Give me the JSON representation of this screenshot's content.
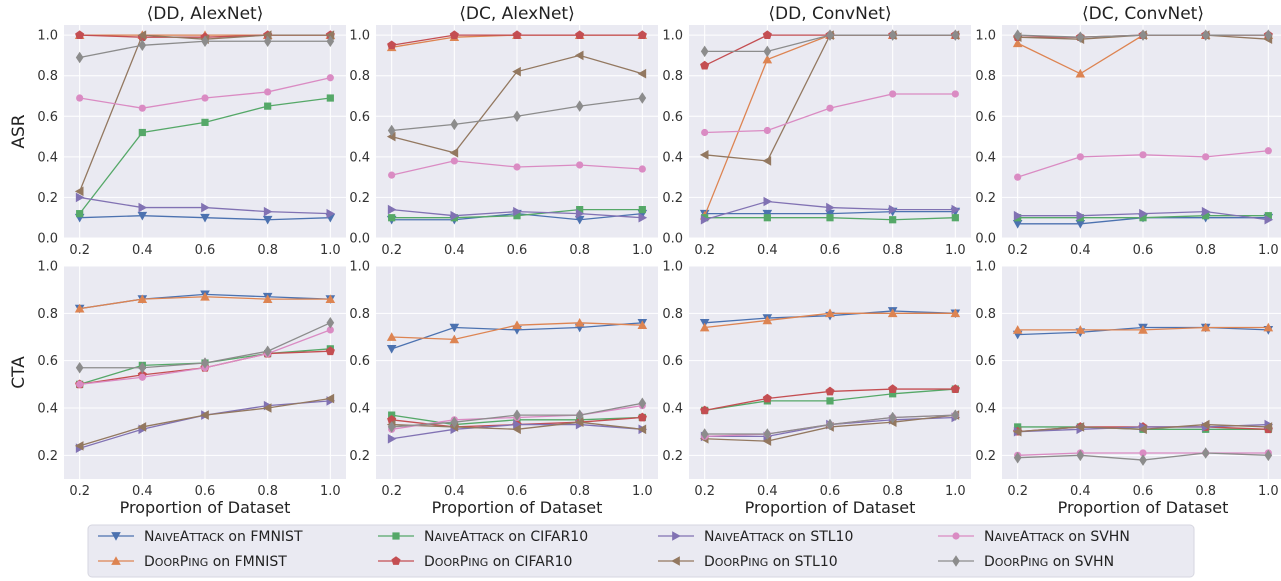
{
  "chart_data": {
    "type": "line",
    "grid": true,
    "xlabel": "Proportion of Dataset",
    "x": [
      0.2,
      0.4,
      0.6,
      0.8,
      1.0
    ],
    "x_ticks": [
      "0.2",
      "0.4",
      "0.6",
      "0.8",
      "1.0"
    ],
    "ylim": [
      0.0,
      1.05
    ],
    "y_ticks_asr": [
      "0.0",
      "0.2",
      "0.4",
      "0.6",
      "0.8",
      "1.0"
    ],
    "ylim_cta": [
      0.1,
      1.0
    ],
    "y_ticks_cta": [
      "0.2",
      "0.4",
      "0.6",
      "0.8",
      "1.0"
    ],
    "row_labels": [
      "ASR",
      "CTA"
    ],
    "columns": [
      "⟨DD, AlexNet⟩",
      "⟨DC, AlexNet⟩",
      "⟨DD, ConvNet⟩",
      "⟨DC, ConvNet⟩"
    ],
    "legend_position": "bottom",
    "series_styles": [
      {
        "method": "NaiveAttack",
        "dataset": "on FMNIST",
        "color": "#4c72b0",
        "marker": "triangle-down"
      },
      {
        "method": "DoorPing",
        "dataset": "on FMNIST",
        "color": "#dd8452",
        "marker": "triangle-up"
      },
      {
        "method": "NaiveAttack",
        "dataset": "on CIFAR10",
        "color": "#55a868",
        "marker": "square"
      },
      {
        "method": "DoorPing",
        "dataset": "on CIFAR10",
        "color": "#c44e52",
        "marker": "pentagon"
      },
      {
        "method": "NaiveAttack",
        "dataset": "on STL10",
        "color": "#8172b3",
        "marker": "triangle-right"
      },
      {
        "method": "DoorPing",
        "dataset": "on STL10",
        "color": "#937860",
        "marker": "triangle-left"
      },
      {
        "method": "NaiveAttack",
        "dataset": "on SVHN",
        "color": "#da8bc3",
        "marker": "circle"
      },
      {
        "method": "DoorPing",
        "dataset": "on SVHN",
        "color": "#8c8c8c",
        "marker": "diamond"
      }
    ],
    "panels": [
      {
        "row": "ASR",
        "column": "⟨DD, AlexNet⟩",
        "series": [
          [
            0.1,
            0.11,
            0.1,
            0.09,
            0.1
          ],
          [
            1.0,
            1.0,
            1.0,
            1.0,
            1.0
          ],
          [
            0.12,
            0.52,
            0.57,
            0.65,
            0.69
          ],
          [
            1.0,
            0.99,
            0.99,
            1.0,
            1.0
          ],
          [
            0.2,
            0.15,
            0.15,
            0.13,
            0.12
          ],
          [
            0.23,
            1.0,
            0.98,
            1.0,
            1.0
          ],
          [
            0.69,
            0.64,
            0.69,
            0.72,
            0.79
          ],
          [
            0.89,
            0.95,
            0.97,
            0.97,
            0.97
          ]
        ]
      },
      {
        "row": "ASR",
        "column": "⟨DC, AlexNet⟩",
        "series": [
          [
            0.09,
            0.09,
            0.12,
            0.09,
            0.12
          ],
          [
            0.94,
            0.99,
            1.0,
            1.0,
            1.0
          ],
          [
            0.1,
            0.1,
            0.11,
            0.14,
            0.14
          ],
          [
            0.95,
            1.0,
            1.0,
            1.0,
            1.0
          ],
          [
            0.14,
            0.11,
            0.13,
            0.12,
            0.1
          ],
          [
            0.5,
            0.42,
            0.82,
            0.9,
            0.81
          ],
          [
            0.31,
            0.38,
            0.35,
            0.36,
            0.34
          ],
          [
            0.53,
            0.56,
            0.6,
            0.65,
            0.69
          ]
        ]
      },
      {
        "row": "ASR",
        "column": "⟨DD, ConvNet⟩",
        "series": [
          [
            0.12,
            0.12,
            0.12,
            0.13,
            0.13
          ],
          [
            0.11,
            0.88,
            1.0,
            1.0,
            1.0
          ],
          [
            0.1,
            0.1,
            0.1,
            0.09,
            0.1
          ],
          [
            0.85,
            1.0,
            1.0,
            1.0,
            1.0
          ],
          [
            0.09,
            0.18,
            0.15,
            0.14,
            0.14
          ],
          [
            0.41,
            0.38,
            1.0,
            1.0,
            1.0
          ],
          [
            0.52,
            0.53,
            0.64,
            0.71,
            0.71
          ],
          [
            0.92,
            0.92,
            1.0,
            1.0,
            1.0
          ]
        ]
      },
      {
        "row": "ASR",
        "column": "⟨DC, ConvNet⟩",
        "series": [
          [
            0.07,
            0.07,
            0.1,
            0.1,
            0.1
          ],
          [
            0.96,
            0.81,
            1.0,
            1.0,
            1.0
          ],
          [
            0.1,
            0.1,
            0.1,
            0.11,
            0.11
          ],
          [
            0.99,
            0.99,
            1.0,
            1.0,
            1.0
          ],
          [
            0.11,
            0.11,
            0.12,
            0.13,
            0.09
          ],
          [
            0.99,
            0.98,
            1.0,
            1.0,
            0.98
          ],
          [
            0.3,
            0.4,
            0.41,
            0.4,
            0.43
          ],
          [
            1.0,
            0.99,
            1.0,
            1.0,
            1.0
          ]
        ]
      },
      {
        "row": "CTA",
        "column": "⟨DD, AlexNet⟩",
        "series": [
          [
            0.82,
            0.86,
            0.88,
            0.87,
            0.86
          ],
          [
            0.82,
            0.86,
            0.87,
            0.86,
            0.86
          ],
          [
            0.5,
            0.58,
            0.59,
            0.63,
            0.65
          ],
          [
            0.5,
            0.54,
            0.57,
            0.63,
            0.64
          ],
          [
            0.23,
            0.31,
            0.37,
            0.41,
            0.43
          ],
          [
            0.24,
            0.32,
            0.37,
            0.4,
            0.44
          ],
          [
            0.5,
            0.53,
            0.57,
            0.63,
            0.73
          ],
          [
            0.57,
            0.57,
            0.59,
            0.64,
            0.76
          ]
        ]
      },
      {
        "row": "CTA",
        "column": "⟨DC, AlexNet⟩",
        "series": [
          [
            0.65,
            0.74,
            0.73,
            0.74,
            0.76
          ],
          [
            0.7,
            0.69,
            0.75,
            0.76,
            0.75
          ],
          [
            0.37,
            0.33,
            0.35,
            0.35,
            0.36
          ],
          [
            0.35,
            0.32,
            0.33,
            0.34,
            0.36
          ],
          [
            0.27,
            0.31,
            0.33,
            0.33,
            0.31
          ],
          [
            0.33,
            0.32,
            0.31,
            0.34,
            0.31
          ],
          [
            0.31,
            0.35,
            0.36,
            0.37,
            0.41
          ],
          [
            0.32,
            0.34,
            0.37,
            0.37,
            0.42
          ]
        ]
      },
      {
        "row": "CTA",
        "column": "⟨DD, ConvNet⟩",
        "series": [
          [
            0.76,
            0.78,
            0.79,
            0.81,
            0.8
          ],
          [
            0.74,
            0.77,
            0.8,
            0.8,
            0.8
          ],
          [
            0.39,
            0.43,
            0.43,
            0.46,
            0.48
          ],
          [
            0.39,
            0.44,
            0.47,
            0.48,
            0.48
          ],
          [
            0.28,
            0.28,
            0.33,
            0.35,
            0.36
          ],
          [
            0.27,
            0.26,
            0.32,
            0.34,
            0.37
          ],
          [
            0.28,
            0.29,
            0.33,
            0.36,
            0.37
          ],
          [
            0.29,
            0.29,
            0.33,
            0.36,
            0.37
          ]
        ]
      },
      {
        "row": "CTA",
        "column": "⟨DC, ConvNet⟩",
        "series": [
          [
            0.71,
            0.72,
            0.74,
            0.74,
            0.73
          ],
          [
            0.73,
            0.73,
            0.73,
            0.74,
            0.74
          ],
          [
            0.32,
            0.32,
            0.31,
            0.31,
            0.31
          ],
          [
            0.3,
            0.32,
            0.32,
            0.32,
            0.31
          ],
          [
            0.3,
            0.31,
            0.32,
            0.32,
            0.33
          ],
          [
            0.3,
            0.32,
            0.31,
            0.33,
            0.32
          ],
          [
            0.2,
            0.21,
            0.21,
            0.21,
            0.21
          ],
          [
            0.19,
            0.2,
            0.18,
            0.21,
            0.2
          ]
        ]
      }
    ]
  }
}
